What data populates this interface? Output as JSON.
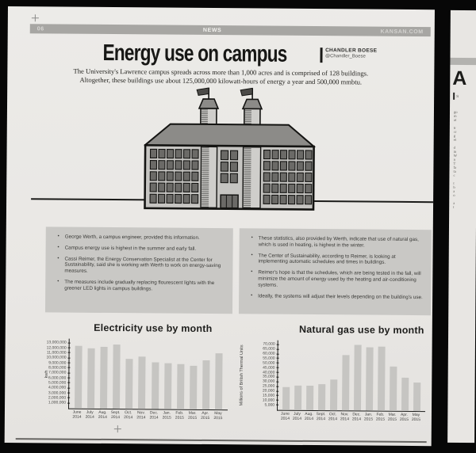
{
  "colors": {
    "paper": "#eae8e5",
    "masthead_bar": "#a7a6a3",
    "fact_box_gray": "#c9c8c5",
    "chart_bar_gray": "#c6c5c2",
    "ink": "#1c1c1a"
  },
  "header": {
    "page_number": "06",
    "section": "NEWS",
    "site": "KANSAN.COM"
  },
  "article": {
    "title": "Energy use on campus",
    "byline_name": "CHANDLER BOESE",
    "byline_handle": "@Chandler_Boese",
    "intro_line1": "The University's Lawrence campus spreads across more than 1,000 acres and is comprised of 128 buildings.",
    "intro_line2": "Altogether, these buildings use about 125,000,000 kilowatt-hours of energy a year and 500,000 mmbtu."
  },
  "illustration": {
    "alt": "campus building with two flag towers"
  },
  "fact_boxes": {
    "left": [
      "George Werth, a campus engineer, provided this information.",
      "Campus energy use is highest in the summer and early fall.",
      "Cassi Reimer, the Energy Conservation Specialist at the Center for Sustainability, said she is working with Werth to work on energy-saving measures.",
      "The measures include gradually replacing flourescent lights with the greener LED lights in campus buildings."
    ],
    "right": [
      "These statistics, also provided by Werth, indicate that use of natural gas, which is used in heating, is highest in the winter.",
      "The Center of Sustainability, according to Reimer, is looking at implementing automatic schedules and times in buildings.",
      "Reimer's hope is that the schedules, which are being tested in the fall, will minimize the amount of energy used by the heating  and air-conditioning systems.",
      "Ideally, the systems will adjust their levels depending on the building's use."
    ]
  },
  "chart_data": [
    {
      "type": "bar",
      "title": "Electricity use by month",
      "ylabel": "kwh",
      "xlabel": "",
      "categories": [
        "June 2014",
        "July 2014",
        "Aug. 2014",
        "Sept. 2014",
        "Oct. 2014",
        "Nov. 2014",
        "Dec. 2014",
        "Jan. 2015",
        "Feb. 2015",
        "Mar. 2015",
        "Apr. 2015",
        "May 2015"
      ],
      "values": [
        12500000,
        12000000,
        12400000,
        12800000,
        9900000,
        10400000,
        9400000,
        9100000,
        9000000,
        8700000,
        9800000,
        11200000
      ],
      "ylim": [
        0,
        13000000
      ],
      "ytick_step": 1000000,
      "grid": false,
      "legend": false,
      "bar_color": "#c6c5c2"
    },
    {
      "type": "bar",
      "title": "Natural gas use by month",
      "ylabel": "Millions of British Thermal Units",
      "xlabel": "",
      "categories": [
        "June 2014",
        "July 2014",
        "Aug. 2014",
        "Sept. 2014",
        "Oct. 2014",
        "Nov. 2014",
        "Dec. 2014",
        "Jan. 2015",
        "Feb. 2015",
        "Mar. 2015",
        "Apr. 2015",
        "May 2015"
      ],
      "values": [
        25000,
        26000,
        26500,
        28000,
        33500,
        60000,
        70500,
        68500,
        69000,
        48000,
        36000,
        30500
      ],
      "ylim": [
        0,
        70000
      ],
      "ytick_step": 5000,
      "grid": false,
      "legend": false,
      "bar_color": "#c6c5c2"
    }
  ],
  "side_page": {
    "headline_fragment": "A",
    "byline_fragment": "S",
    "text_fragments": [
      "",
      "go",
      "m",
      "at",
      "",
      "tr",
      "cr",
      "g",
      "et",
      "",
      "d",
      "in",
      "W",
      "n",
      "T",
      "fa",
      "ta",
      "c",
      "",
      "t",
      "b",
      "a",
      "o",
      "",
      "a",
      "t"
    ]
  }
}
